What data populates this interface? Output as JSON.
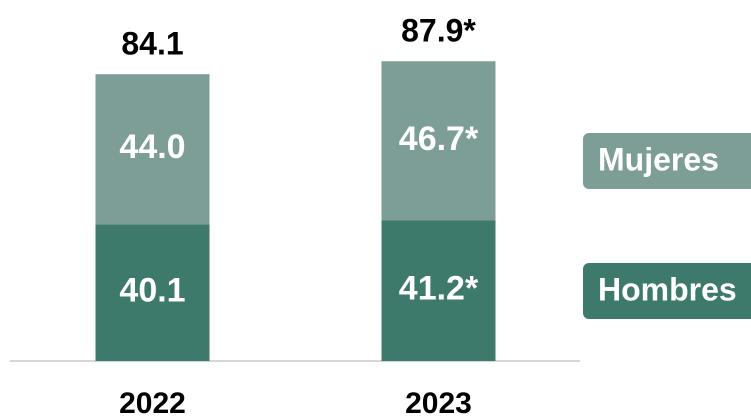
{
  "chart_data": {
    "type": "stacked-bar",
    "categories": [
      "2022",
      "2023"
    ],
    "series": [
      {
        "name": "Hombres",
        "color": "#3d7a6b",
        "values": [
          40.1,
          41.2
        ],
        "value_labels": [
          "40.1",
          "41.2*"
        ]
      },
      {
        "name": "Mujeres",
        "color": "#7d9e96",
        "values": [
          44.0,
          46.7
        ],
        "value_labels": [
          "44.0",
          "46.7*"
        ]
      }
    ],
    "totals": [
      84.1,
      87.9
    ],
    "total_labels": [
      "84.1",
      "87.9*"
    ]
  }
}
